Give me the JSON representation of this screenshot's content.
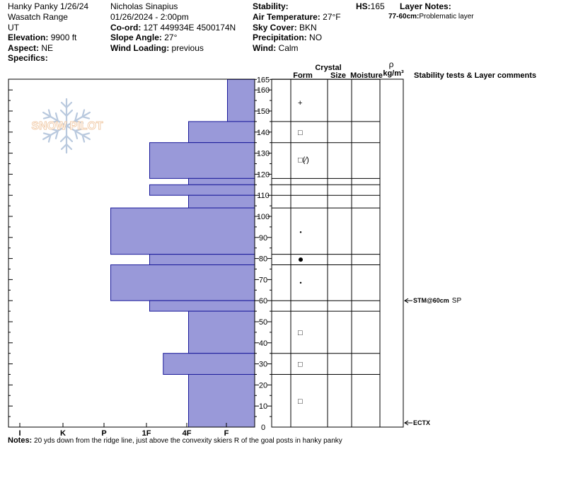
{
  "header": {
    "title": "Hanky Panky 1/26/24",
    "range": "Wasatch Range",
    "state": "UT",
    "elevation_label": "Elevation:",
    "elevation_value": " 9900 ft",
    "aspect_label": "Aspect:",
    "aspect_value": " NE",
    "specifics_label": "Specifics:",
    "observer": "Nicholas Sinapius",
    "datetime": "01/26/2024 - 2:00pm",
    "coord_label": "Co-ord:",
    "coord_value": " 12T 449934E 4500174N",
    "slope_label": "Slope Angle:",
    "slope_value": " 27°",
    "wind_loading_label": "Wind Loading:",
    "wind_loading_value": " previous",
    "stability_label": "Stability:",
    "air_temp_label": "Air Temperature:",
    "air_temp_value": " 27°F",
    "sky_label": "Sky Cover:",
    "sky_value": " BKN",
    "precip_label": "Precipitation:",
    "precip_value": " NO",
    "wind_label": "Wind:",
    "wind_value": "  Calm",
    "hs_label": "HS:",
    "hs_value": "165",
    "layer_notes_label": "Layer Notes:",
    "layer_note_range": "77-60cm:",
    "layer_note_text": "Problematic layer"
  },
  "logo_text": "SNOW PILOT",
  "notes": {
    "label": "Notes:",
    "text": "20 yds down from the ridge line, just above the convexity skiers R of the goal posts in hanky panky"
  },
  "chart_data": {
    "type": "snow_profile",
    "hardness_axis": [
      "I",
      "K",
      "P",
      "1F",
      "4F",
      "F"
    ],
    "hardness_xlim": [
      0,
      6
    ],
    "depth_ticks": [
      0,
      10,
      20,
      30,
      40,
      50,
      60,
      70,
      80,
      90,
      100,
      110,
      120,
      130,
      140,
      150,
      160,
      165
    ],
    "depth_range": [
      0,
      165
    ],
    "columns": {
      "crystal": "Crystal",
      "form": "Form",
      "size": "Size",
      "moisture": "Moisture",
      "density_symbol": "ρ",
      "density_unit": "kg/m³",
      "comments": "Stability tests & Layer comments"
    },
    "hardness_layers": [
      {
        "bottom": 145,
        "top": 165,
        "hardness": 0.7
      },
      {
        "bottom": 135,
        "top": 145,
        "hardness": 1.7
      },
      {
        "bottom": 118,
        "top": 135,
        "hardness": 2.7
      },
      {
        "bottom": 115,
        "top": 118,
        "hardness": 1.7
      },
      {
        "bottom": 110,
        "top": 115,
        "hardness": 2.7
      },
      {
        "bottom": 104,
        "top": 110,
        "hardness": 1.7
      },
      {
        "bottom": 82,
        "top": 104,
        "hardness": 3.7
      },
      {
        "bottom": 77,
        "top": 82,
        "hardness": 2.7
      },
      {
        "bottom": 60,
        "top": 77,
        "hardness": 3.7
      },
      {
        "bottom": 55,
        "top": 60,
        "hardness": 2.7
      },
      {
        "bottom": 35,
        "top": 55,
        "hardness": 1.7
      },
      {
        "bottom": 25,
        "top": 35,
        "hardness": 2.35
      },
      {
        "bottom": 0,
        "top": 25,
        "hardness": 1.7
      }
    ],
    "layer_boundaries": [
      165,
      145,
      135,
      118,
      115,
      110,
      104,
      82,
      77,
      60,
      55,
      35,
      25
    ],
    "grain_forms": [
      {
        "depth": 154,
        "symbol": "+"
      },
      {
        "depth": 140,
        "symbol": "□"
      },
      {
        "depth": 127,
        "symbol": "□(⁄)"
      },
      {
        "depth": 92.5,
        "symbol": "•"
      },
      {
        "depth": 79.5,
        "symbol": "●"
      },
      {
        "depth": 68.5,
        "symbol": "•"
      },
      {
        "depth": 45,
        "symbol": "□"
      },
      {
        "depth": 30,
        "symbol": "□"
      },
      {
        "depth": 12.5,
        "symbol": "□"
      }
    ],
    "stability_tests": [
      {
        "depth": 60,
        "label": "STM@60cm",
        "suffix": "SP"
      },
      {
        "depth": 2,
        "label": "ECTX",
        "suffix": ""
      }
    ]
  }
}
